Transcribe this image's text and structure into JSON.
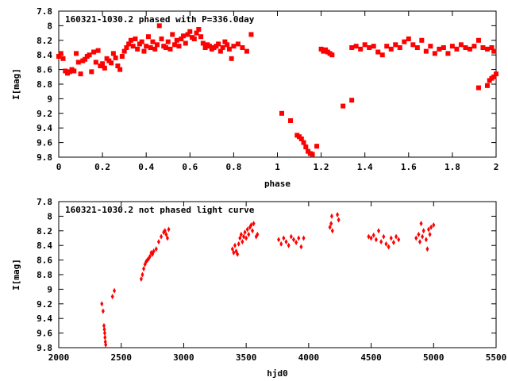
{
  "chart_data": [
    {
      "type": "scatter",
      "title": "160321-1030.2 phased with P=336.0day",
      "xlabel": "phase",
      "ylabel": "I[mag]",
      "xlim": [
        0,
        2
      ],
      "ylim": [
        9.8,
        7.8
      ],
      "y_inverted": true,
      "grid": false,
      "marker": "square",
      "color": "#ff0000",
      "xticks": [
        "0",
        "0.2",
        "0.4",
        "0.6",
        "0.8",
        "1",
        "1.2",
        "1.4",
        "1.6",
        "1.8",
        "2"
      ],
      "yticks": [
        "7.8",
        "8",
        "8.2",
        "8.4",
        "8.6",
        "8.8",
        "9",
        "9.2",
        "9.4",
        "9.6",
        "9.8"
      ],
      "series": [
        {
          "points": [
            [
              0.0,
              8.42
            ],
            [
              0.01,
              8.38
            ],
            [
              0.02,
              8.45
            ],
            [
              0.03,
              8.62
            ],
            [
              0.04,
              8.65
            ],
            [
              0.05,
              8.63
            ],
            [
              0.06,
              8.6
            ],
            [
              0.07,
              8.62
            ],
            [
              0.08,
              8.38
            ],
            [
              0.09,
              8.5
            ],
            [
              0.1,
              8.66
            ],
            [
              0.11,
              8.48
            ],
            [
              0.12,
              8.46
            ],
            [
              0.13,
              8.42
            ],
            [
              0.14,
              8.4
            ],
            [
              0.15,
              8.63
            ],
            [
              0.16,
              8.36
            ],
            [
              0.17,
              8.5
            ],
            [
              0.18,
              8.34
            ],
            [
              0.19,
              8.55
            ],
            [
              0.2,
              8.52
            ],
            [
              0.21,
              8.58
            ],
            [
              0.22,
              8.45
            ],
            [
              0.23,
              8.48
            ],
            [
              0.24,
              8.51
            ],
            [
              0.25,
              8.38
            ],
            [
              0.26,
              8.44
            ],
            [
              0.27,
              8.55
            ],
            [
              0.28,
              8.6
            ],
            [
              0.29,
              8.42
            ],
            [
              0.3,
              8.35
            ],
            [
              0.31,
              8.3
            ],
            [
              0.32,
              8.25
            ],
            [
              0.33,
              8.2
            ],
            [
              0.34,
              8.28
            ],
            [
              0.35,
              8.18
            ],
            [
              0.36,
              8.32
            ],
            [
              0.37,
              8.25
            ],
            [
              0.38,
              8.22
            ],
            [
              0.39,
              8.35
            ],
            [
              0.4,
              8.28
            ],
            [
              0.41,
              8.15
            ],
            [
              0.42,
              8.3
            ],
            [
              0.43,
              8.22
            ],
            [
              0.44,
              8.32
            ],
            [
              0.45,
              8.26
            ],
            [
              0.46,
              8.0
            ],
            [
              0.47,
              8.18
            ],
            [
              0.48,
              8.28
            ],
            [
              0.49,
              8.3
            ],
            [
              0.5,
              8.22
            ],
            [
              0.51,
              8.32
            ],
            [
              0.52,
              8.12
            ],
            [
              0.53,
              8.26
            ],
            [
              0.54,
              8.2
            ],
            [
              0.55,
              8.28
            ],
            [
              0.56,
              8.18
            ],
            [
              0.57,
              8.14
            ],
            [
              0.58,
              8.24
            ],
            [
              0.59,
              8.12
            ],
            [
              0.6,
              8.08
            ],
            [
              0.61,
              8.16
            ],
            [
              0.62,
              8.18
            ],
            [
              0.63,
              8.1
            ],
            [
              0.64,
              8.05
            ],
            [
              0.65,
              8.15
            ],
            [
              0.66,
              8.24
            ],
            [
              0.67,
              8.3
            ],
            [
              0.68,
              8.26
            ],
            [
              0.69,
              8.28
            ],
            [
              0.7,
              8.32
            ],
            [
              0.71,
              8.3
            ],
            [
              0.72,
              8.28
            ],
            [
              0.73,
              8.25
            ],
            [
              0.74,
              8.35
            ],
            [
              0.75,
              8.3
            ],
            [
              0.76,
              8.22
            ],
            [
              0.77,
              8.26
            ],
            [
              0.78,
              8.32
            ],
            [
              0.79,
              8.45
            ],
            [
              0.8,
              8.28
            ],
            [
              0.82,
              8.25
            ],
            [
              0.84,
              8.3
            ],
            [
              0.86,
              8.35
            ],
            [
              0.88,
              8.12
            ],
            [
              1.02,
              9.2
            ],
            [
              1.06,
              9.3
            ],
            [
              1.09,
              9.5
            ],
            [
              1.1,
              9.52
            ],
            [
              1.11,
              9.55
            ],
            [
              1.12,
              9.6
            ],
            [
              1.13,
              9.66
            ],
            [
              1.14,
              9.72
            ],
            [
              1.15,
              9.75
            ],
            [
              1.16,
              9.76
            ],
            [
              1.18,
              9.65
            ],
            [
              1.2,
              8.32
            ],
            [
              1.21,
              8.35
            ],
            [
              1.22,
              8.33
            ],
            [
              1.23,
              8.36
            ],
            [
              1.24,
              8.38
            ],
            [
              1.25,
              8.4
            ],
            [
              1.3,
              9.1
            ],
            [
              1.34,
              9.02
            ],
            [
              1.34,
              8.3
            ],
            [
              1.36,
              8.28
            ],
            [
              1.38,
              8.32
            ],
            [
              1.4,
              8.26
            ],
            [
              1.42,
              8.3
            ],
            [
              1.44,
              8.28
            ],
            [
              1.46,
              8.36
            ],
            [
              1.48,
              8.4
            ],
            [
              1.5,
              8.28
            ],
            [
              1.52,
              8.32
            ],
            [
              1.54,
              8.26
            ],
            [
              1.56,
              8.3
            ],
            [
              1.58,
              8.22
            ],
            [
              1.6,
              8.18
            ],
            [
              1.62,
              8.26
            ],
            [
              1.64,
              8.3
            ],
            [
              1.66,
              8.2
            ],
            [
              1.68,
              8.35
            ],
            [
              1.7,
              8.28
            ],
            [
              1.72,
              8.38
            ],
            [
              1.74,
              8.32
            ],
            [
              1.76,
              8.3
            ],
            [
              1.78,
              8.38
            ],
            [
              1.8,
              8.28
            ],
            [
              1.82,
              8.32
            ],
            [
              1.84,
              8.26
            ],
            [
              1.86,
              8.3
            ],
            [
              1.88,
              8.32
            ],
            [
              1.9,
              8.28
            ],
            [
              1.92,
              8.2
            ],
            [
              1.94,
              8.3
            ],
            [
              1.96,
              8.32
            ],
            [
              1.98,
              8.3
            ],
            [
              1.99,
              8.35
            ],
            [
              1.92,
              8.85
            ],
            [
              1.96,
              8.82
            ],
            [
              1.97,
              8.75
            ],
            [
              1.98,
              8.72
            ],
            [
              1.99,
              8.7
            ],
            [
              2.0,
              8.66
            ]
          ]
        }
      ]
    },
    {
      "type": "scatter",
      "title": "160321-1030.2 not phased light curve",
      "xlabel": "hjd0",
      "ylabel": "I[mag]",
      "xlim": [
        2000,
        5500
      ],
      "ylim": [
        9.8,
        7.8
      ],
      "y_inverted": true,
      "grid": false,
      "marker": "diamond",
      "color": "#ff0000",
      "xticks": [
        "2000",
        "2500",
        "3000",
        "3500",
        "4000",
        "4500",
        "5000",
        "5500"
      ],
      "yticks": [
        "7.8",
        "8",
        "8.2",
        "8.4",
        "8.6",
        "8.8",
        "9",
        "9.2",
        "9.4",
        "9.6",
        "9.8"
      ],
      "series": [
        {
          "points": [
            [
              2345,
              9.2
            ],
            [
              2355,
              9.3
            ],
            [
              2362,
              9.5
            ],
            [
              2365,
              9.55
            ],
            [
              2368,
              9.6
            ],
            [
              2370,
              9.66
            ],
            [
              2373,
              9.72
            ],
            [
              2376,
              9.76
            ],
            [
              2430,
              9.1
            ],
            [
              2445,
              9.02
            ],
            [
              2660,
              8.86
            ],
            [
              2670,
              8.8
            ],
            [
              2680,
              8.72
            ],
            [
              2690,
              8.66
            ],
            [
              2700,
              8.62
            ],
            [
              2710,
              8.6
            ],
            [
              2720,
              8.58
            ],
            [
              2730,
              8.55
            ],
            [
              2740,
              8.5
            ],
            [
              2750,
              8.52
            ],
            [
              2760,
              8.48
            ],
            [
              2780,
              8.45
            ],
            [
              2800,
              8.35
            ],
            [
              2820,
              8.28
            ],
            [
              2840,
              8.22
            ],
            [
              2850,
              8.2
            ],
            [
              2860,
              8.25
            ],
            [
              2870,
              8.3
            ],
            [
              2880,
              8.18
            ],
            [
              3390,
              8.45
            ],
            [
              3400,
              8.5
            ],
            [
              3410,
              8.4
            ],
            [
              3420,
              8.48
            ],
            [
              3430,
              8.52
            ],
            [
              3440,
              8.38
            ],
            [
              3450,
              8.3
            ],
            [
              3460,
              8.25
            ],
            [
              3470,
              8.35
            ],
            [
              3480,
              8.28
            ],
            [
              3490,
              8.22
            ],
            [
              3500,
              8.3
            ],
            [
              3510,
              8.18
            ],
            [
              3520,
              8.25
            ],
            [
              3530,
              8.15
            ],
            [
              3540,
              8.12
            ],
            [
              3550,
              8.2
            ],
            [
              3560,
              8.1
            ],
            [
              3580,
              8.28
            ],
            [
              3590,
              8.25
            ],
            [
              3760,
              8.32
            ],
            [
              3780,
              8.38
            ],
            [
              3800,
              8.3
            ],
            [
              3820,
              8.35
            ],
            [
              3840,
              8.4
            ],
            [
              3860,
              8.28
            ],
            [
              3880,
              8.32
            ],
            [
              3900,
              8.36
            ],
            [
              3920,
              8.3
            ],
            [
              3940,
              8.42
            ],
            [
              3960,
              8.3
            ],
            [
              4170,
              8.15
            ],
            [
              4180,
              8.1
            ],
            [
              4185,
              8.0
            ],
            [
              4190,
              8.2
            ],
            [
              4230,
              7.98
            ],
            [
              4240,
              8.05
            ],
            [
              4480,
              8.28
            ],
            [
              4500,
              8.3
            ],
            [
              4520,
              8.26
            ],
            [
              4540,
              8.32
            ],
            [
              4560,
              8.2
            ],
            [
              4580,
              8.35
            ],
            [
              4600,
              8.28
            ],
            [
              4620,
              8.38
            ],
            [
              4640,
              8.42
            ],
            [
              4660,
              8.3
            ],
            [
              4680,
              8.36
            ],
            [
              4700,
              8.28
            ],
            [
              4720,
              8.32
            ],
            [
              4860,
              8.3
            ],
            [
              4880,
              8.25
            ],
            [
              4890,
              8.35
            ],
            [
              4900,
              8.1
            ],
            [
              4910,
              8.28
            ],
            [
              4920,
              8.2
            ],
            [
              4940,
              8.32
            ],
            [
              4950,
              8.45
            ],
            [
              4960,
              8.18
            ],
            [
              4970,
              8.25
            ],
            [
              4980,
              8.15
            ],
            [
              5000,
              8.12
            ]
          ]
        }
      ]
    }
  ]
}
